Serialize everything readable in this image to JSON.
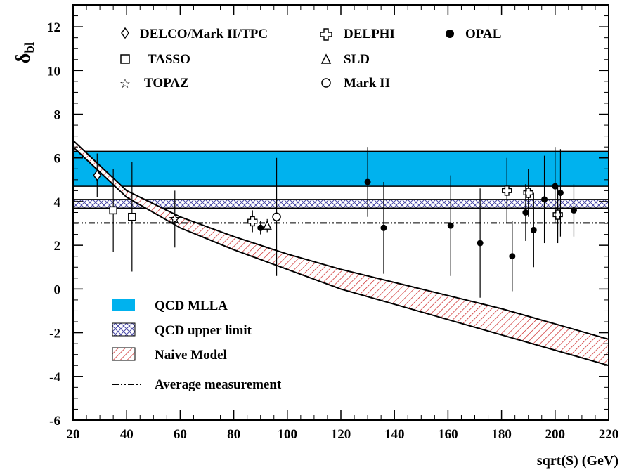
{
  "chart_data": {
    "type": "scatter",
    "xlabel": "sqrt(S) (GeV)",
    "ylabel_main": "δ",
    "ylabel_sub": "bl",
    "xlim": [
      20,
      220
    ],
    "ylim": [
      -6,
      13
    ],
    "xticks": [
      20,
      40,
      60,
      80,
      100,
      120,
      140,
      160,
      180,
      200,
      220
    ],
    "yticks": [
      -6,
      -4,
      -2,
      0,
      2,
      4,
      6,
      8,
      10,
      12
    ],
    "grid": false,
    "series": [
      {
        "name": "DELCO/Mark II/TPC",
        "marker": "diamond",
        "points": [
          {
            "x": 29,
            "y": 5.2,
            "lo": 4.2,
            "hi": 6.2
          }
        ]
      },
      {
        "name": "TASSO",
        "marker": "square",
        "points": [
          {
            "x": 35,
            "y": 3.6,
            "lo": 1.7,
            "hi": 5.5
          },
          {
            "x": 42,
            "y": 3.3,
            "lo": 0.8,
            "hi": 5.8
          }
        ]
      },
      {
        "name": "TOPAZ",
        "marker": "star",
        "points": [
          {
            "x": 58,
            "y": 3.2,
            "lo": 1.9,
            "hi": 4.5
          }
        ]
      },
      {
        "name": "DELPHI",
        "marker": "cross",
        "points": [
          {
            "x": 87,
            "y": 3.1,
            "lo": 2.6,
            "hi": 3.6
          },
          {
            "x": 182,
            "y": 4.5,
            "lo": 3.0,
            "hi": 6.0
          },
          {
            "x": 190,
            "y": 4.4,
            "lo": 3.3,
            "hi": 5.5
          },
          {
            "x": 201,
            "y": 3.4,
            "lo": 2.1,
            "hi": 4.7
          }
        ]
      },
      {
        "name": "SLD",
        "marker": "triangle",
        "points": [
          {
            "x": 92.5,
            "y": 2.9,
            "lo": 2.6,
            "hi": 3.2
          }
        ]
      },
      {
        "name": "Mark II",
        "marker": "circle-open",
        "points": [
          {
            "x": 96,
            "y": 3.3,
            "lo": 0.6,
            "hi": 6.0
          }
        ]
      },
      {
        "name": "OPAL",
        "marker": "circle-filled",
        "points": [
          {
            "x": 90,
            "y": 2.8,
            "lo": 2.5,
            "hi": 3.1
          },
          {
            "x": 130,
            "y": 4.9,
            "lo": 3.3,
            "hi": 6.5
          },
          {
            "x": 136,
            "y": 2.8,
            "lo": 0.7,
            "hi": 4.9
          },
          {
            "x": 161,
            "y": 2.9,
            "lo": 0.6,
            "hi": 5.2
          },
          {
            "x": 172,
            "y": 2.1,
            "lo": -0.4,
            "hi": 4.6
          },
          {
            "x": 184,
            "y": 1.5,
            "lo": -0.1,
            "hi": 3.1
          },
          {
            "x": 189,
            "y": 3.5,
            "lo": 2.2,
            "hi": 4.8
          },
          {
            "x": 192,
            "y": 2.7,
            "lo": 1.0,
            "hi": 4.4
          },
          {
            "x": 196,
            "y": 4.1,
            "lo": 2.1,
            "hi": 6.1
          },
          {
            "x": 200,
            "y": 4.7,
            "lo": 3.0,
            "hi": 6.5
          },
          {
            "x": 202,
            "y": 4.4,
            "lo": 2.4,
            "hi": 6.4
          },
          {
            "x": 207,
            "y": 3.6,
            "lo": 2.4,
            "hi": 4.8
          }
        ]
      }
    ],
    "bands": {
      "mlla": {
        "name": "QCD MLLA",
        "y_low": 4.7,
        "y_high": 6.3,
        "color": "#00b2ee"
      },
      "upper": {
        "name": "QCD upper limit",
        "y_low": 3.7,
        "y_high": 4.1,
        "color": "#4a4aa8"
      },
      "naive": {
        "name": "Naive Model",
        "color": "#cc2222",
        "x": [
          20,
          40,
          60,
          80,
          100,
          120,
          140,
          160,
          180,
          200,
          220
        ],
        "upper": [
          6.8,
          4.5,
          3.3,
          2.4,
          1.6,
          0.9,
          0.3,
          -0.3,
          -0.9,
          -1.6,
          -2.3
        ],
        "lower": [
          6.5,
          4.2,
          2.8,
          1.8,
          0.9,
          0.0,
          -0.7,
          -1.4,
          -2.1,
          -2.8,
          -3.5
        ]
      },
      "average": {
        "name": "Average measurement",
        "y": 3.02
      }
    },
    "legend_placement": "upper-left (markers) and lower-left (bands)"
  }
}
